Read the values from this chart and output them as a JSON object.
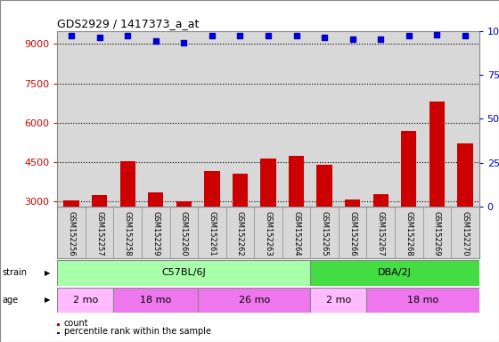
{
  "title": "GDS2929 / 1417373_a_at",
  "samples": [
    "GSM152256",
    "GSM152257",
    "GSM152258",
    "GSM152259",
    "GSM152260",
    "GSM152261",
    "GSM152262",
    "GSM152263",
    "GSM152264",
    "GSM152265",
    "GSM152266",
    "GSM152267",
    "GSM152268",
    "GSM152269",
    "GSM152270"
  ],
  "counts": [
    3050,
    3250,
    4550,
    3350,
    3020,
    4150,
    4050,
    4650,
    4750,
    4400,
    3080,
    3300,
    5700,
    6800,
    5200
  ],
  "percentile_ranks": [
    97,
    96,
    97,
    94,
    93,
    97,
    97,
    97,
    97,
    96,
    95,
    95,
    97,
    98,
    97
  ],
  "ylim_left": [
    2800,
    9500
  ],
  "ylim_right": [
    0,
    100
  ],
  "yticks_left": [
    3000,
    4500,
    6000,
    7500,
    9000
  ],
  "yticks_right": [
    0,
    25,
    50,
    75,
    100
  ],
  "bar_color": "#cc0000",
  "dot_color": "#0000cc",
  "strain_groups": [
    {
      "label": "C57BL/6J",
      "start": 0,
      "end": 9,
      "color": "#aaffaa"
    },
    {
      "label": "DBA/2J",
      "start": 9,
      "end": 15,
      "color": "#44dd44"
    }
  ],
  "age_groups": [
    {
      "label": "2 mo",
      "start": 0,
      "end": 2,
      "color": "#ffbbff"
    },
    {
      "label": "18 mo",
      "start": 2,
      "end": 5,
      "color": "#ee77ee"
    },
    {
      "label": "26 mo",
      "start": 5,
      "end": 9,
      "color": "#ee77ee"
    },
    {
      "label": "2 mo",
      "start": 9,
      "end": 11,
      "color": "#ffbbff"
    },
    {
      "label": "18 mo",
      "start": 11,
      "end": 15,
      "color": "#ee77ee"
    }
  ],
  "background_color": "#ffffff",
  "plot_bg_color": "#d8d8d8",
  "grid_color": "#000000",
  "left_axis_color": "#cc0000",
  "right_axis_color": "#0000cc",
  "legend_count_color": "#cc0000",
  "legend_dot_color": "#0000cc",
  "border_color": "#888888"
}
